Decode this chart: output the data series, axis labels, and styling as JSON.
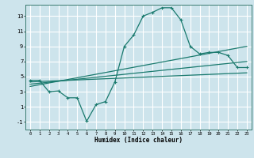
{
  "xlabel": "Humidex (Indice chaleur)",
  "bg_color": "#cde4ec",
  "grid_color": "#ffffff",
  "line_color": "#1a7a6e",
  "xlim": [
    -0.5,
    23.5
  ],
  "ylim": [
    -2.0,
    14.5
  ],
  "xticks": [
    0,
    1,
    2,
    3,
    4,
    5,
    6,
    7,
    8,
    9,
    10,
    11,
    12,
    13,
    14,
    15,
    16,
    17,
    18,
    19,
    20,
    21,
    22,
    23
  ],
  "yticks": [
    -1,
    1,
    3,
    5,
    7,
    9,
    11,
    13
  ],
  "main_x": [
    0,
    1,
    2,
    3,
    4,
    5,
    6,
    7,
    8,
    9,
    10,
    11,
    12,
    13,
    14,
    15,
    16,
    17,
    18,
    19,
    20,
    21,
    22,
    23
  ],
  "main_y": [
    4.5,
    4.5,
    3.0,
    3.1,
    2.2,
    2.2,
    -0.9,
    1.3,
    1.7,
    4.3,
    9.0,
    10.5,
    13.0,
    13.5,
    14.1,
    14.1,
    12.5,
    9.0,
    8.0,
    8.2,
    8.2,
    7.8,
    6.2,
    6.2
  ],
  "line1_x": [
    0,
    23
  ],
  "line1_y": [
    4.3,
    5.5
  ],
  "line2_x": [
    0,
    23
  ],
  "line2_y": [
    4.0,
    7.0
  ],
  "line3_x": [
    0,
    23
  ],
  "line3_y": [
    3.7,
    9.0
  ]
}
